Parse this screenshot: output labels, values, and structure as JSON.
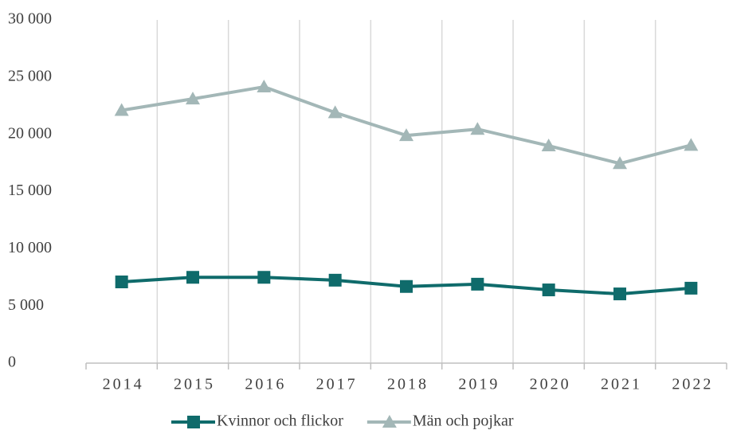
{
  "chart_data": {
    "type": "line",
    "categories": [
      "2014",
      "2015",
      "2016",
      "2017",
      "2018",
      "2019",
      "2020",
      "2021",
      "2022"
    ],
    "series": [
      {
        "name": "Kvinnor och flickor",
        "color": "#0f6b6b",
        "marker": "square",
        "values": [
          7100,
          7500,
          7500,
          7250,
          6700,
          6900,
          6400,
          6050,
          6550
        ]
      },
      {
        "name": "Män och pojkar",
        "color": "#a3b7b7",
        "marker": "triangle",
        "values": [
          22100,
          23100,
          24150,
          21900,
          19900,
          20450,
          19000,
          17450,
          19050
        ]
      }
    ],
    "ylim": [
      0,
      30000
    ],
    "yticks": [
      0,
      {
        "value": 5000,
        "label": "5 000"
      },
      {
        "value": 10000,
        "label": "10 000"
      },
      {
        "value": 15000,
        "label": "15 000"
      },
      {
        "value": 20000,
        "label": "20 000"
      },
      {
        "value": 25000,
        "label": "25 000"
      },
      {
        "value": 30000,
        "label": "30 000"
      }
    ],
    "grid": "vertical",
    "legend": "bottom"
  }
}
